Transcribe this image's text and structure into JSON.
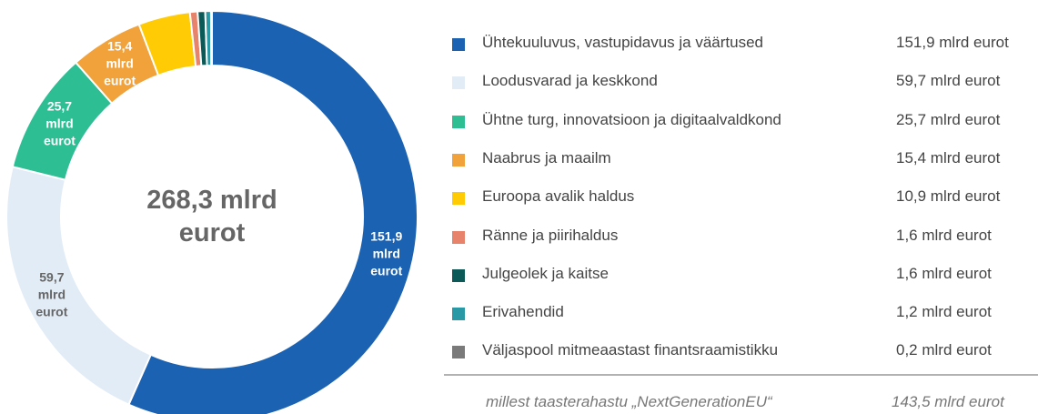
{
  "chart_data": {
    "type": "donut",
    "center_label": "268,3 mlrd eurot",
    "categories": [
      "Ühtekuuluvus, vastupidavus ja väärtused",
      "Loodusvarad ja keskkond",
      "Ühtne turg, innovatsioon ja digitaalvaldkond",
      "Naabrus ja maailm",
      "Euroopa avalik haldus",
      "Ränne ja piirihaldus",
      "Julgeolek ja kaitse",
      "Erivahendid",
      "Väljaspool mitmeaastast finantsraamistikku"
    ],
    "values": [
      151.9,
      59.7,
      25.7,
      15.4,
      10.9,
      1.6,
      1.6,
      1.2,
      0.2
    ],
    "value_labels": [
      "151,9 mlrd eurot",
      "59,7 mlrd eurot",
      "25,7 mlrd eurot",
      "15,4 mlrd eurot",
      "10,9 mlrd eurot",
      "1,6 mlrd eurot",
      "1,6 mlrd eurot",
      "1,2 mlrd eurot",
      "0,2 mlrd eurot"
    ],
    "colors": [
      "#1c62b2",
      "#e2ecf6",
      "#2dbf93",
      "#f1a23a",
      "#ffcb05",
      "#e8836b",
      "#0c5a57",
      "#2a99a6",
      "#7a7a7a"
    ],
    "note": {
      "text": "millest taasterahastu „NextGenerationEU“",
      "value_label": "143,5 mlrd eurot"
    }
  }
}
